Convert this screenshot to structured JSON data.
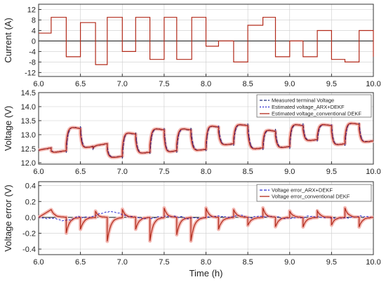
{
  "colors": {
    "measured": "#1f2a7a",
    "arx": "#2b2bd0",
    "conventional": "#b22a1a",
    "conventional_halo": "#f3b8b3",
    "current": "#b22a1a"
  },
  "xlabel": "Time (h)",
  "chart_data": [
    {
      "type": "line",
      "ylabel": "Current (A)",
      "xlim": [
        6.0,
        10.0
      ],
      "ylim": [
        -13.5,
        14
      ],
      "xticks": [
        "6.0",
        "6.5",
        "7.0",
        "7.5",
        "8.0",
        "8.5",
        "9.0",
        "9.5",
        "10.0"
      ],
      "yticks": [
        "12",
        "8",
        "4",
        "0",
        "-4",
        "-8",
        "-12"
      ],
      "legend": [],
      "series": [
        {
          "key": "current",
          "steps": [
            [
              6.0,
              3
            ],
            [
              6.15,
              9
            ],
            [
              6.33,
              -6
            ],
            [
              6.5,
              7
            ],
            [
              6.68,
              -9
            ],
            [
              6.82,
              9
            ],
            [
              7.0,
              -4
            ],
            [
              7.16,
              9
            ],
            [
              7.33,
              -7
            ],
            [
              7.5,
              9
            ],
            [
              7.65,
              -7
            ],
            [
              7.83,
              9
            ],
            [
              8.0,
              -2
            ],
            [
              8.15,
              0
            ],
            [
              8.33,
              -8
            ],
            [
              8.5,
              6
            ],
            [
              8.68,
              9
            ],
            [
              8.83,
              -6
            ],
            [
              9.0,
              0
            ],
            [
              9.16,
              -6
            ],
            [
              9.33,
              4
            ],
            [
              9.5,
              -7
            ],
            [
              9.66,
              -8
            ],
            [
              9.83,
              4
            ],
            [
              10.0,
              -6
            ]
          ]
        }
      ]
    },
    {
      "type": "line",
      "ylabel": "Voltage (V)",
      "xlim": [
        6.0,
        10.0
      ],
      "ylim": [
        11.95,
        14.5
      ],
      "xticks": [
        "6.0",
        "6.5",
        "7.0",
        "7.5",
        "8.0",
        "8.5",
        "9.0",
        "9.5",
        "10.0"
      ],
      "yticks": [
        "14.5",
        "14.0",
        "13.5",
        "13.0",
        "12.5",
        "12.0"
      ],
      "legend": [
        "Measured terminal Voltage",
        "Estimated voltage_ARX+DEKF",
        "Estimated voltage_conventional DEKF"
      ],
      "levels": [
        [
          6.0,
          12.45
        ],
        [
          6.15,
          12.35
        ],
        [
          6.33,
          13.3
        ],
        [
          6.5,
          12.5
        ],
        [
          6.65,
          12.6
        ],
        [
          6.82,
          12.15
        ],
        [
          7.0,
          13.1
        ],
        [
          7.16,
          12.3
        ],
        [
          7.33,
          13.25
        ],
        [
          7.5,
          12.35
        ],
        [
          7.65,
          13.25
        ],
        [
          7.82,
          12.4
        ],
        [
          8.0,
          13.35
        ],
        [
          8.15,
          12.6
        ],
        [
          8.33,
          13.4
        ],
        [
          8.5,
          12.45
        ],
        [
          8.68,
          13.2
        ],
        [
          8.83,
          12.5
        ],
        [
          9.0,
          13.4
        ],
        [
          9.16,
          12.75
        ],
        [
          9.33,
          13.4
        ],
        [
          9.5,
          12.6
        ],
        [
          9.66,
          13.45
        ],
        [
          9.83,
          12.7
        ],
        [
          10.0,
          12.6
        ]
      ]
    },
    {
      "type": "line",
      "ylabel": "Voltage error (V)",
      "xlim": [
        6.0,
        10.0
      ],
      "ylim": [
        -0.47,
        0.45
      ],
      "xticks": [
        "6.0",
        "6.5",
        "7.0",
        "7.5",
        "8.0",
        "8.5",
        "9.0",
        "9.5",
        "10.0"
      ],
      "yticks": [
        "0.4",
        "0.2",
        "0.0",
        "-0.2",
        "-0.4"
      ],
      "legend": [
        "Voltage error_ARX+DEKF",
        "Voltage error_conventional DEKF"
      ],
      "conv_events": [
        [
          6.15,
          0.1
        ],
        [
          6.33,
          -0.2
        ],
        [
          6.5,
          -0.15
        ],
        [
          6.68,
          0.08
        ],
        [
          6.82,
          -0.3
        ],
        [
          7.0,
          0.1
        ],
        [
          7.16,
          -0.15
        ],
        [
          7.33,
          -0.3
        ],
        [
          7.5,
          0.12
        ],
        [
          7.65,
          -0.22
        ],
        [
          7.82,
          -0.3
        ],
        [
          8.0,
          0.12
        ],
        [
          8.15,
          -0.15
        ],
        [
          8.33,
          0.1
        ],
        [
          8.5,
          -0.1
        ],
        [
          8.68,
          0.12
        ],
        [
          8.83,
          -0.12
        ],
        [
          9.0,
          0.08
        ],
        [
          9.16,
          -0.12
        ],
        [
          9.33,
          0.08
        ],
        [
          9.5,
          -0.1
        ],
        [
          9.66,
          0.12
        ],
        [
          9.83,
          -0.12
        ],
        [
          10.0,
          -0.05
        ]
      ]
    }
  ]
}
